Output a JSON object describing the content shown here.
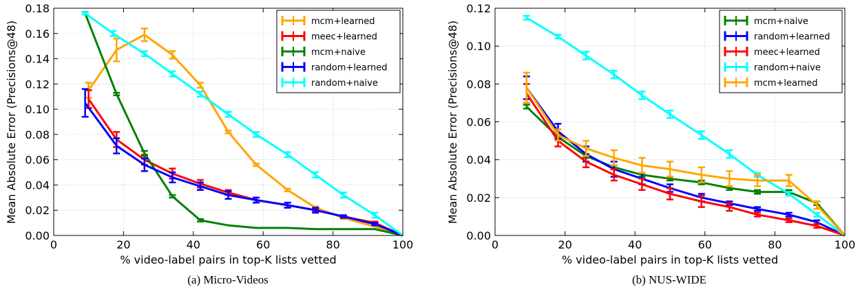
{
  "chart_data": [
    {
      "type": "line",
      "caption": "(a) Micro-Videos",
      "xlabel": "% video-label pairs in top-K lists vetted",
      "ylabel": "Mean Absolute Error (Precisions@48)",
      "xlim": [
        0,
        100
      ],
      "ylim": [
        0,
        0.18
      ],
      "xticks": [
        "0",
        "20",
        "40",
        "60",
        "80",
        "100"
      ],
      "yticks": [
        "0.00",
        "0.02",
        "0.04",
        "0.06",
        "0.08",
        "0.10",
        "0.12",
        "0.14",
        "0.16",
        "0.18"
      ],
      "grid": true,
      "legend_position": "top-right",
      "series": [
        {
          "name": "mcm+learned",
          "color": "#ffa500",
          "x": [
            10,
            18,
            26,
            34,
            42,
            50,
            58,
            67,
            75,
            83,
            92,
            100
          ],
          "y": [
            0.115,
            0.147,
            0.159,
            0.143,
            0.119,
            0.082,
            0.056,
            0.036,
            0.022,
            0.014,
            0.007,
            0.0
          ],
          "err": [
            0.006,
            0.009,
            0.005,
            0.003,
            0.002,
            0.001,
            0.001,
            0.001,
            0.001,
            0.001,
            0.0,
            0.0
          ]
        },
        {
          "name": "meec+learned",
          "color": "#ff0000",
          "x": [
            10,
            18,
            26,
            34,
            42,
            50,
            58,
            67,
            75,
            83,
            92,
            100
          ],
          "y": [
            0.108,
            0.076,
            0.06,
            0.049,
            0.041,
            0.034,
            0.028,
            0.024,
            0.02,
            0.015,
            0.01,
            0.0
          ],
          "err": [
            0.007,
            0.006,
            0.004,
            0.004,
            0.003,
            0.002,
            0.002,
            0.002,
            0.001,
            0.001,
            0.001,
            0.0
          ]
        },
        {
          "name": "mcm+naive",
          "color": "#008000",
          "x": [
            9,
            18,
            26,
            34,
            42,
            50,
            58,
            67,
            75,
            83,
            92,
            100
          ],
          "y": [
            0.176,
            0.112,
            0.065,
            0.031,
            0.012,
            0.008,
            0.006,
            0.006,
            0.005,
            0.005,
            0.005,
            0.0
          ],
          "err": [
            0.001,
            0.001,
            0.002,
            0.001,
            0.001,
            0.0,
            0.0,
            0.0,
            0.0,
            0.0,
            0.0,
            0.0
          ]
        },
        {
          "name": "random+learned",
          "color": "#0000ff",
          "x": [
            9,
            18,
            26,
            34,
            42,
            50,
            58,
            67,
            75,
            83,
            92,
            100
          ],
          "y": [
            0.105,
            0.071,
            0.056,
            0.046,
            0.039,
            0.032,
            0.028,
            0.024,
            0.02,
            0.015,
            0.009,
            0.0
          ],
          "err": [
            0.011,
            0.006,
            0.005,
            0.004,
            0.003,
            0.003,
            0.002,
            0.002,
            0.002,
            0.001,
            0.001,
            0.0
          ]
        },
        {
          "name": "random+naive",
          "color": "#00ffff",
          "x": [
            9,
            17,
            26,
            34,
            42,
            50,
            58,
            67,
            75,
            83,
            92,
            100
          ],
          "y": [
            0.176,
            0.16,
            0.144,
            0.128,
            0.112,
            0.096,
            0.08,
            0.064,
            0.048,
            0.032,
            0.016,
            0.0
          ],
          "err": [
            0.001,
            0.002,
            0.002,
            0.002,
            0.002,
            0.002,
            0.002,
            0.002,
            0.002,
            0.002,
            0.002,
            0.0
          ]
        }
      ]
    },
    {
      "type": "line",
      "caption": "(b) NUS-WIDE",
      "xlabel": "% video-label pairs in top-K lists vetted",
      "ylabel": "Mean Absolute Error (Precisions@48)",
      "xlim": [
        0,
        100
      ],
      "ylim": [
        0,
        0.12
      ],
      "xticks": [
        "0",
        "20",
        "40",
        "60",
        "80",
        "100"
      ],
      "yticks": [
        "0.00",
        "0.02",
        "0.04",
        "0.06",
        "0.08",
        "0.10",
        "0.12"
      ],
      "grid": true,
      "legend_position": "top-right",
      "series": [
        {
          "name": "mcm+naive",
          "color": "#008000",
          "x": [
            9,
            18,
            26,
            34,
            42,
            50,
            59,
            67,
            75,
            84,
            92,
            100
          ],
          "y": [
            0.068,
            0.052,
            0.042,
            0.036,
            0.032,
            0.03,
            0.028,
            0.025,
            0.023,
            0.023,
            0.017,
            0.0
          ],
          "err": [
            0.001,
            0.001,
            0.001,
            0.001,
            0.001,
            0.001,
            0.001,
            0.001,
            0.001,
            0.001,
            0.001,
            0.0
          ]
        },
        {
          "name": "random+learned",
          "color": "#0000ff",
          "x": [
            9,
            18,
            26,
            34,
            42,
            50,
            59,
            67,
            75,
            84,
            92,
            100
          ],
          "y": [
            0.078,
            0.055,
            0.043,
            0.035,
            0.03,
            0.025,
            0.02,
            0.017,
            0.014,
            0.011,
            0.007,
            0.0
          ],
          "err": [
            0.006,
            0.004,
            0.004,
            0.004,
            0.003,
            0.002,
            0.002,
            0.001,
            0.001,
            0.001,
            0.001,
            0.0
          ]
        },
        {
          "name": "meec+learned",
          "color": "#ff0000",
          "x": [
            9,
            18,
            26,
            34,
            42,
            50,
            59,
            67,
            75,
            84,
            92,
            100
          ],
          "y": [
            0.075,
            0.05,
            0.039,
            0.032,
            0.027,
            0.022,
            0.018,
            0.015,
            0.011,
            0.008,
            0.005,
            0.0
          ],
          "err": [
            0.005,
            0.003,
            0.003,
            0.003,
            0.003,
            0.003,
            0.003,
            0.002,
            0.001,
            0.001,
            0.001,
            0.0
          ]
        },
        {
          "name": "random+naive",
          "color": "#00ffff",
          "x": [
            9,
            18,
            26,
            34,
            42,
            50,
            59,
            67,
            75,
            84,
            92,
            100
          ],
          "y": [
            0.115,
            0.105,
            0.095,
            0.085,
            0.074,
            0.064,
            0.053,
            0.043,
            0.032,
            0.022,
            0.011,
            0.0
          ],
          "err": [
            0.001,
            0.001,
            0.002,
            0.002,
            0.002,
            0.002,
            0.002,
            0.002,
            0.001,
            0.001,
            0.001,
            0.0
          ]
        },
        {
          "name": "mcm+learned",
          "color": "#ffa500",
          "x": [
            9,
            18,
            26,
            34,
            42,
            50,
            59,
            67,
            75,
            84,
            92,
            100
          ],
          "y": [
            0.078,
            0.053,
            0.046,
            0.041,
            0.037,
            0.035,
            0.032,
            0.03,
            0.029,
            0.029,
            0.016,
            0.0
          ],
          "err": [
            0.008,
            0.003,
            0.004,
            0.004,
            0.004,
            0.004,
            0.004,
            0.004,
            0.003,
            0.003,
            0.002,
            0.0
          ]
        }
      ]
    }
  ]
}
